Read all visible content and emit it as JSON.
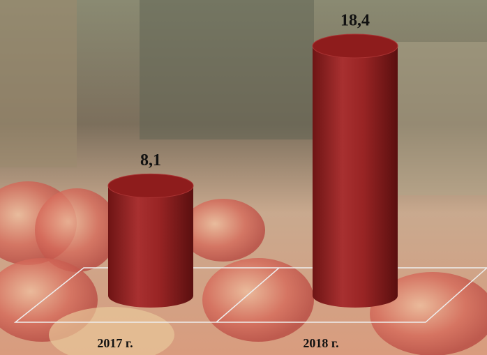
{
  "chart_data": {
    "type": "bar",
    "categories": [
      "2017 г.",
      "2018 г."
    ],
    "values": [
      8.1,
      18.4
    ],
    "value_labels": [
      "8,1",
      "18,4"
    ],
    "color": "#8b1a1a"
  }
}
